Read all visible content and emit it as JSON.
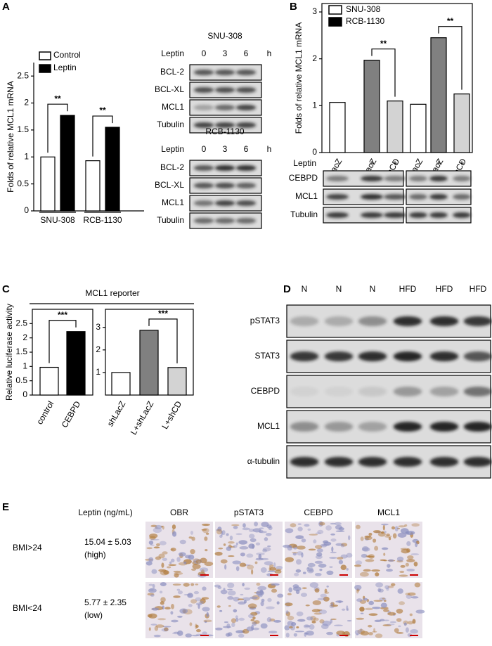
{
  "panels": [
    "A",
    "B",
    "C",
    "D",
    "E"
  ],
  "chart_data": [
    {
      "type": "bar",
      "ylabel": "Folds of relative MCL1 mRNA",
      "categories": [
        "SNU-308",
        "RCB-1130"
      ],
      "series": [
        {
          "name": "Control",
          "color": "#ffffff",
          "values": [
            1.0,
            0.93
          ]
        },
        {
          "name": "Leptin",
          "color": "#000000",
          "values": [
            1.77,
            1.55
          ]
        }
      ],
      "ylim": [
        0,
        2.75
      ],
      "yticks": [
        0,
        0.5,
        1,
        1.5,
        2,
        2.5
      ],
      "annotations": [
        "**",
        "**"
      ]
    },
    {
      "type": "bar",
      "ylabel": "Folds of relative MCL1 mRNA",
      "categories": [
        "shLacZ",
        "shLacZ",
        "shCD",
        "shLacZ",
        "shLacZ",
        "shCD"
      ],
      "values": [
        1.07,
        1.97,
        1.1,
        1.03,
        2.45,
        1.25
      ],
      "colors": [
        "#ffffff",
        "#808080",
        "#d3d3d3",
        "#ffffff",
        "#808080",
        "#d3d3d3"
      ],
      "legend": [
        {
          "name": "SNU-308",
          "color": "#ffffff"
        },
        {
          "name": "RCB-1130",
          "color": "#000000"
        }
      ],
      "treatment_label": "Leptin",
      "treatment": [
        "-",
        "+",
        "+",
        "-",
        "+",
        "+"
      ],
      "ylim": [
        0,
        3.18
      ],
      "yticks": [
        0,
        1,
        2,
        3
      ],
      "annotations": [
        "**",
        "**"
      ]
    },
    {
      "type": "bar",
      "title": "MCL1 reporter",
      "ylabel": "Relative luciferase activity",
      "categories": [
        "control",
        "CEBPD"
      ],
      "values": [
        0.97,
        2.22
      ],
      "colors": [
        "#ffffff",
        "#000000"
      ],
      "ylim": [
        0,
        3
      ],
      "yticks": [
        0,
        0.5,
        1,
        1.5,
        2,
        2.5
      ],
      "annotations": [
        "***"
      ]
    },
    {
      "type": "bar",
      "categories": [
        "shLacZ",
        "L+shLacZ",
        "L+shCD"
      ],
      "values": [
        1.0,
        2.87,
        1.22
      ],
      "colors": [
        "#ffffff",
        "#808080",
        "#d3d3d3"
      ],
      "ylim": [
        0,
        3.8
      ],
      "yticks": [
        1,
        2,
        3
      ],
      "annotations": [
        "***"
      ]
    }
  ],
  "blots": {
    "a1": {
      "title": "SNU-308",
      "treatment_label": "Leptin",
      "times": [
        "0",
        "3",
        "6"
      ],
      "unit": "h",
      "rows": [
        "BCL-2",
        "BCL-XL",
        "MCL1",
        "Tubulin"
      ]
    },
    "a2": {
      "title": "RCB-1130",
      "treatment_label": "Leptin",
      "times": [
        "0",
        "3",
        "6"
      ],
      "unit": "h",
      "rows": [
        "BCL-2",
        "BCL-XL",
        "MCL1",
        "Tubulin"
      ]
    },
    "b": {
      "rows": [
        "CEBPD",
        "MCL1",
        "Tubulin"
      ]
    },
    "d": {
      "columns": [
        "N",
        "N",
        "N",
        "HFD",
        "HFD",
        "HFD"
      ],
      "rows": [
        "pSTAT3",
        "STAT3",
        "CEBPD",
        "MCL1",
        "α-tubulin"
      ]
    }
  },
  "ihc": {
    "header": [
      "Leptin (ng/mL)",
      "OBR",
      "pSTAT3",
      "CEBPD",
      "MCL1"
    ],
    "rows": [
      {
        "group": "BMI>24",
        "leptin": "15.04 ± 5.03",
        "level": "(high)"
      },
      {
        "group": "BMI<24",
        "leptin": "5.77 ± 2.35",
        "level": "(low)"
      }
    ]
  }
}
